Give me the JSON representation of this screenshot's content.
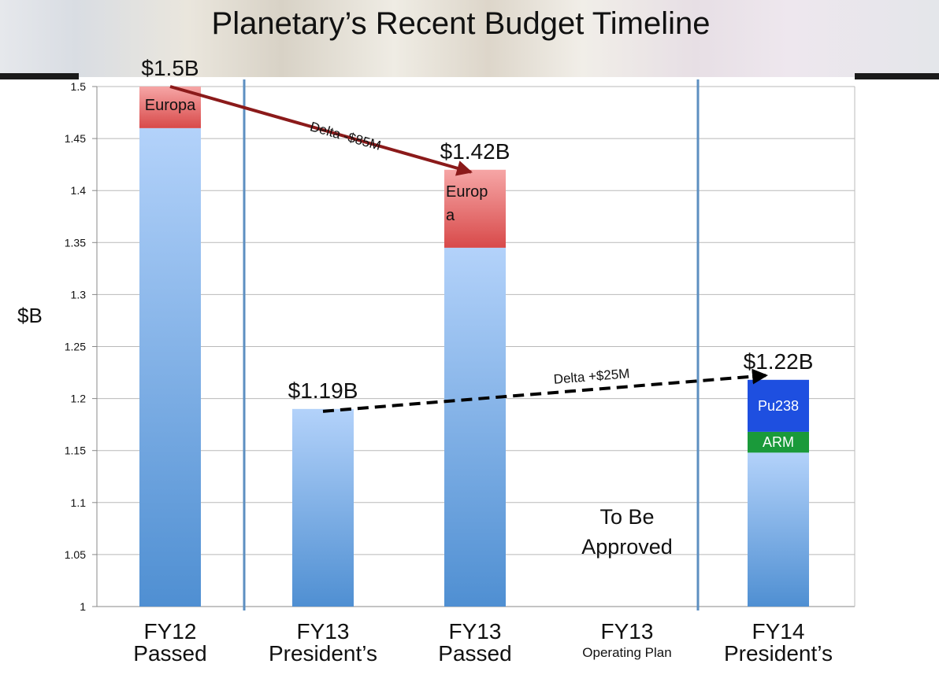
{
  "title": "Planetary’s Recent Budget Timeline",
  "chart_data": {
    "type": "bar",
    "ylabel": "$B",
    "ylim": [
      1,
      1.5
    ],
    "y_ticks": [
      "1",
      "1.05",
      "1.1",
      "1.15",
      "1.2",
      "1.25",
      "1.3",
      "1.35",
      "1.4",
      "1.45",
      "1.5"
    ],
    "grid": true,
    "categories": [
      {
        "line1": "FY12",
        "line2": "Passed"
      },
      {
        "line1": "FY13",
        "line2": "President’s"
      },
      {
        "line1": "FY13",
        "line2": "Passed"
      },
      {
        "line1": "FY13",
        "line2": "Operating Plan"
      },
      {
        "line1": "FY14",
        "line2": "President’s"
      }
    ],
    "bars": [
      {
        "category_index": 0,
        "total_label": "$1.5B",
        "segments": [
          {
            "label": "",
            "from": 1.0,
            "to": 1.46,
            "color": "#5b9bd5"
          },
          {
            "label": "Europa",
            "from": 1.46,
            "to": 1.5,
            "color": "#e06060"
          }
        ]
      },
      {
        "category_index": 1,
        "total_label": "$1.19B",
        "segments": [
          {
            "label": "",
            "from": 1.0,
            "to": 1.19,
            "color": "#5b9bd5"
          }
        ]
      },
      {
        "category_index": 2,
        "total_label": "$1.42B",
        "segments": [
          {
            "label": "",
            "from": 1.0,
            "to": 1.345,
            "color": "#5b9bd5"
          },
          {
            "label": "Europ a",
            "from": 1.345,
            "to": 1.42,
            "color": "#e06060"
          }
        ]
      },
      {
        "category_index": 4,
        "total_label": "$1.22B",
        "segments": [
          {
            "label": "",
            "from": 1.0,
            "to": 1.148,
            "color": "#5b9bd5"
          },
          {
            "label": "ARM",
            "from": 1.148,
            "to": 1.168,
            "color": "#1a9a3a"
          },
          {
            "label": "Pu238",
            "from": 1.168,
            "to": 1.218,
            "color": "#1e4fe0"
          }
        ]
      }
    ],
    "annotations": [
      {
        "text": "Delta -$85M",
        "from_category": 0,
        "from_value": 1.5,
        "to_category": 2,
        "to_value": 1.42,
        "style": "solid",
        "color": "#8b1a1a"
      },
      {
        "text": "Delta +$25M",
        "from_category": 1,
        "from_value": 1.19,
        "to_category": 4,
        "to_value": 1.22,
        "style": "dashed",
        "color": "#000000"
      }
    ],
    "placeholder_text": "To Be Approved",
    "placeholder_category": 3
  }
}
